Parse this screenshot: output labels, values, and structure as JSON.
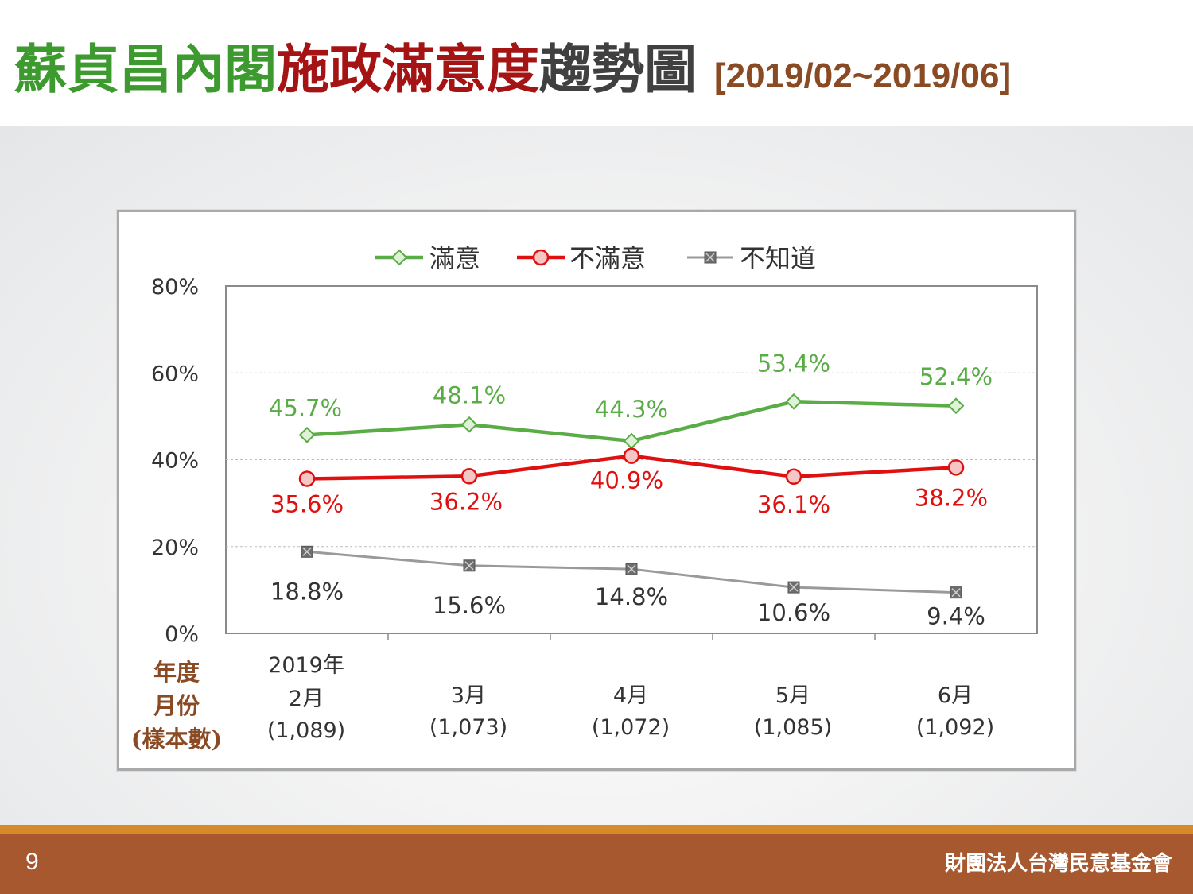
{
  "header": {
    "title_part1": "蘇貞昌內閣",
    "title_part2": "施政滿意度",
    "title_part3": "趨勢圖",
    "date_range": "[2019/02~2019/06]"
  },
  "footer": {
    "page_number": "9",
    "organization": "財團法人台灣民意基金會"
  },
  "colors": {
    "satisfied": "#5aac46",
    "dissatisfied": "#e01010",
    "unknown": "#9a9a9a",
    "axis_label_brown": "#8a4a24"
  },
  "chart_data": {
    "type": "line",
    "x_axis_title": [
      "年度",
      "月份",
      "(樣本數)"
    ],
    "categories": [
      {
        "year": "2019年",
        "month": "2月",
        "sample": "(1,089)"
      },
      {
        "year": "",
        "month": "3月",
        "sample": "(1,073)"
      },
      {
        "year": "",
        "month": "4月",
        "sample": "(1,072)"
      },
      {
        "year": "",
        "month": "5月",
        "sample": "(1,085)"
      },
      {
        "year": "",
        "month": "6月",
        "sample": "(1,092)"
      }
    ],
    "y_ticks": [
      "0%",
      "20%",
      "40%",
      "60%",
      "80%"
    ],
    "ylim": [
      0,
      80
    ],
    "grid": true,
    "legend_position": "top-center",
    "series": [
      {
        "name": "滿意",
        "marker": "diamond",
        "values": [
          45.7,
          48.1,
          44.3,
          53.4,
          52.4
        ],
        "labels": [
          "45.7%",
          "48.1%",
          "44.3%",
          "53.4%",
          "52.4%"
        ]
      },
      {
        "name": "不滿意",
        "marker": "circle",
        "values": [
          35.6,
          36.2,
          40.9,
          36.1,
          38.2
        ],
        "labels": [
          "35.6%",
          "36.2%",
          "40.9%",
          "36.1%",
          "38.2%"
        ]
      },
      {
        "name": "不知道",
        "marker": "square",
        "values": [
          18.8,
          15.6,
          14.8,
          10.6,
          9.4
        ],
        "labels": [
          "18.8%",
          "15.6%",
          "14.8%",
          "10.6%",
          "9.4%"
        ]
      }
    ]
  }
}
